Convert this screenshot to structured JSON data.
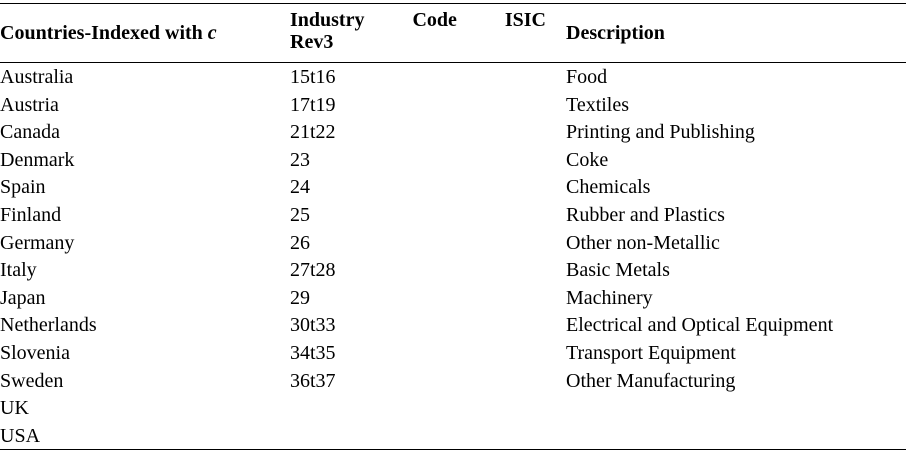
{
  "headers": {
    "col1_text": "Countries-Indexed with ",
    "col1_var": "c",
    "col2_words": [
      "Industry",
      "Code",
      "ISIC"
    ],
    "col2_line2": "Rev3",
    "col3": "Description"
  },
  "rows": [
    {
      "country": "Australia",
      "code": "15t16",
      "description": "Food"
    },
    {
      "country": "Austria",
      "code": "17t19",
      "description": "Textiles"
    },
    {
      "country": "Canada",
      "code": "21t22",
      "description": "Printing and Publishing"
    },
    {
      "country": "Denmark",
      "code": "23",
      "description": "Coke"
    },
    {
      "country": "Spain",
      "code": "24",
      "description": "Chemicals"
    },
    {
      "country": "Finland",
      "code": "25",
      "description": "Rubber and Plastics"
    },
    {
      "country": "Germany",
      "code": "26",
      "description": "Other non-Metallic"
    },
    {
      "country": "Italy",
      "code": "27t28",
      "description": "Basic Metals"
    },
    {
      "country": "Japan",
      "code": "29",
      "description": "Machinery"
    },
    {
      "country": "Netherlands",
      "code": "30t33",
      "description": "Electrical and Optical Equipment"
    },
    {
      "country": "Slovenia",
      "code": "34t35",
      "description": "Transport Equipment"
    },
    {
      "country": "Sweden",
      "code": "36t37",
      "description": "Other Manufacturing"
    },
    {
      "country": "UK",
      "code": "",
      "description": ""
    },
    {
      "country": "USA",
      "code": "",
      "description": ""
    }
  ]
}
